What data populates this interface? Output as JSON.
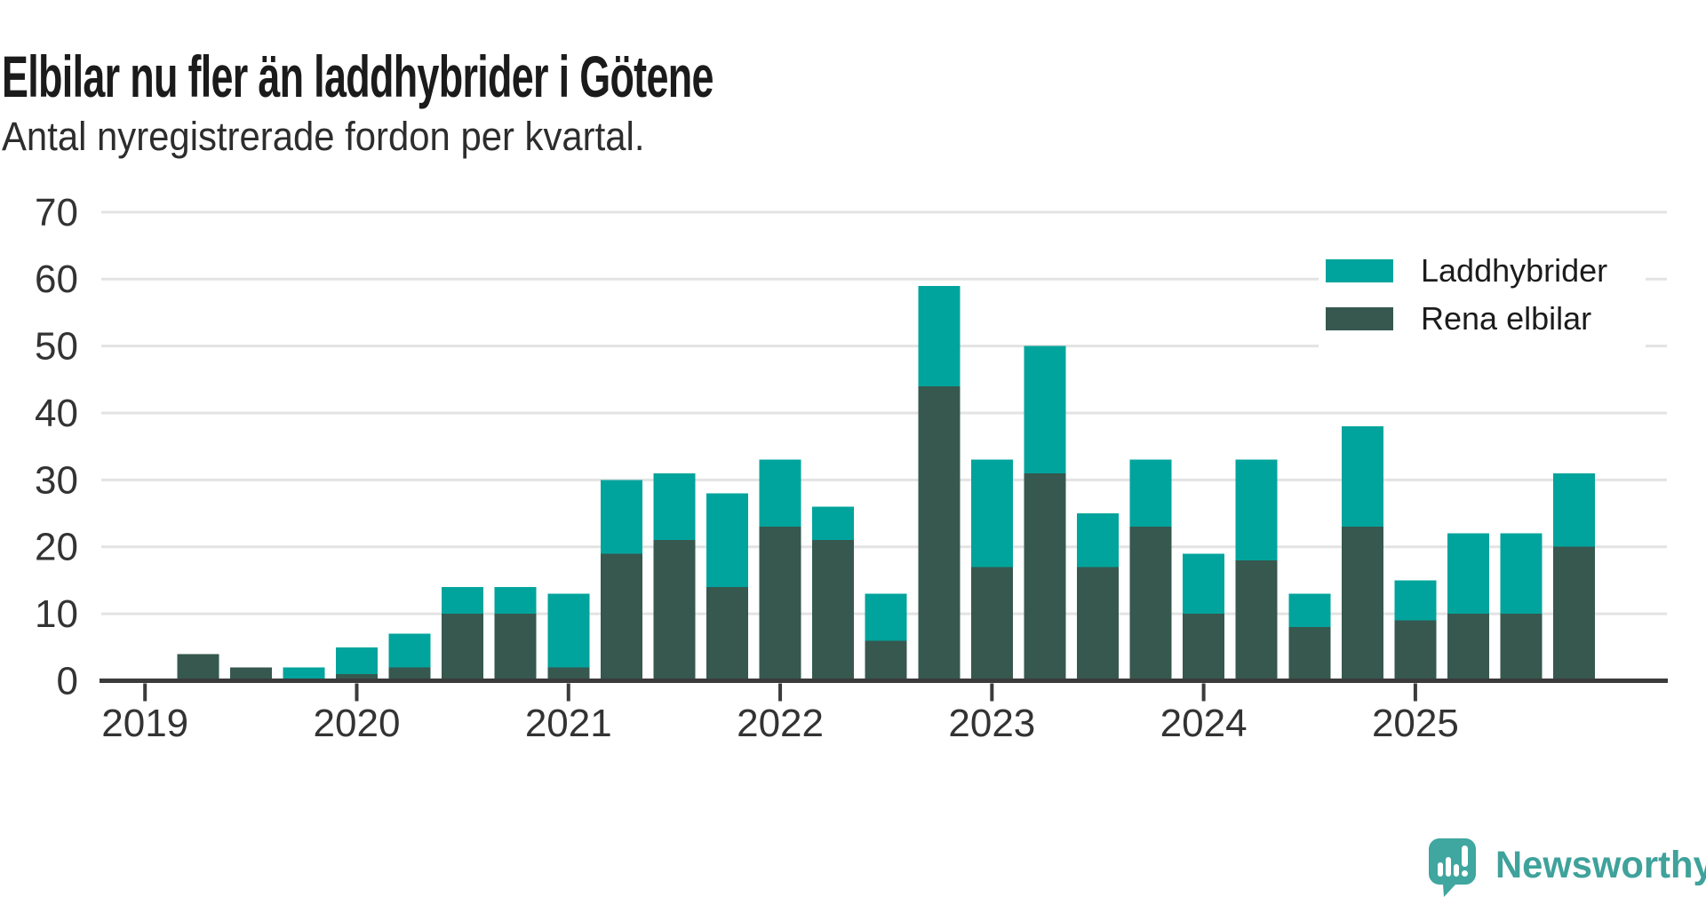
{
  "header": {
    "title": "Elbilar nu fler än laddhybrider i Götene",
    "subtitle": "Antal nyregistrerade fordon per kvartal."
  },
  "chart_data": {
    "type": "bar",
    "stacked": true,
    "title": "Elbilar nu fler än laddhybrider i Götene",
    "xlabel": "",
    "ylabel": "",
    "ylim": [
      0,
      70
    ],
    "grid": true,
    "legend_position": "top-right",
    "categories": [
      "2019K1",
      "2019K2",
      "2019K3",
      "2019K4",
      "2020K1",
      "2020K2",
      "2020K3",
      "2020K4",
      "2021K1",
      "2021K2",
      "2021K3",
      "2021K4",
      "2022K1",
      "2022K2",
      "2022K3",
      "2022K4",
      "2023K1",
      "2023K2",
      "2023K3",
      "2023K4",
      "2024K1",
      "2024K2",
      "2024K3",
      "2024K4",
      "2025K1",
      "2025K2",
      "2025K3",
      "2025K4"
    ],
    "x_tick_labels": [
      "2019",
      "2020",
      "2021",
      "2022",
      "2023",
      "2024",
      "2025"
    ],
    "y_ticks": [
      0,
      10,
      20,
      30,
      40,
      50,
      60,
      70
    ],
    "stack_bottom": "Rena elbilar",
    "series": [
      {
        "name": "Laddhybrider",
        "color": "#00a49c",
        "values": [
          0,
          0,
          0,
          2,
          4,
          5,
          4,
          4,
          11,
          11,
          10,
          14,
          10,
          5,
          7,
          15,
          16,
          19,
          8,
          10,
          9,
          15,
          5,
          15,
          6,
          12,
          12,
          11
        ]
      },
      {
        "name": "Rena elbilar",
        "color": "#36584f",
        "values": [
          0,
          4,
          2,
          0,
          1,
          2,
          10,
          10,
          2,
          19,
          21,
          14,
          23,
          21,
          6,
          44,
          17,
          31,
          17,
          23,
          10,
          18,
          8,
          23,
          9,
          10,
          10,
          20
        ]
      }
    ],
    "totals": [
      0,
      4,
      2,
      2,
      5,
      7,
      14,
      14,
      13,
      30,
      31,
      28,
      33,
      26,
      13,
      59,
      33,
      50,
      25,
      33,
      19,
      33,
      13,
      38,
      15,
      22,
      22,
      31
    ]
  },
  "legend": {
    "items": [
      {
        "label": "Laddhybrider",
        "color": "#00a49c"
      },
      {
        "label": "Rena elbilar",
        "color": "#36584f"
      }
    ]
  },
  "footer": {
    "brand": "Newsworthy",
    "logo_icon": "newsworthy-speech-bubble-chart-icon",
    "brand_color": "#3fa29b",
    "logo_color": "#3fa6a0"
  },
  "colors": {
    "gridline": "#e3e3e3",
    "axis": "#3b3b3b",
    "label": "#333333",
    "background": "#ffffff"
  }
}
